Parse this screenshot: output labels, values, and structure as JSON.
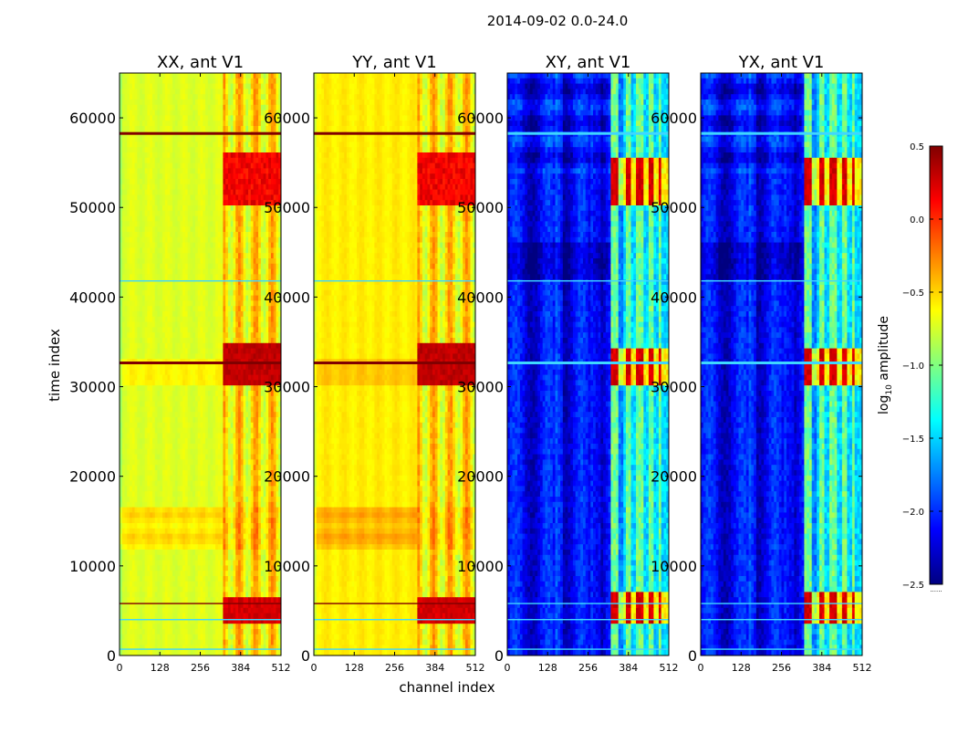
{
  "figure": {
    "title": "2014-09-02 0.0-24.0",
    "x_axis_label": "channel index",
    "y_axis_label": "time index"
  },
  "colorbar": {
    "label_prefix": "log",
    "label_subscript": "10",
    "label_suffix": " amplitude",
    "ticks": [
      "0.5",
      "0.0",
      "−0.5",
      "−1.0",
      "−1.5",
      "−2.0",
      "−2.5"
    ],
    "colors": [
      "#800000",
      "#ff0000",
      "#ff8000",
      "#ffff00",
      "#80ff80",
      "#00ffff",
      "#0080ff",
      "#0000ff",
      "#000080"
    ],
    "footer": "......"
  },
  "chart_data": {
    "type": "heatmap",
    "title": "2014-09-02 0.0-24.0",
    "xlabel": "channel index",
    "ylabel": "time index",
    "xlim": [
      0,
      512
    ],
    "ylim": [
      0,
      65000
    ],
    "xticks": [
      0,
      128,
      256,
      384,
      512
    ],
    "yticks": [
      0,
      10000,
      20000,
      30000,
      40000,
      50000,
      60000
    ],
    "xtick_labels": [
      "0",
      "128",
      "256",
      "384",
      "512"
    ],
    "ytick_labels": [
      "0",
      "10000",
      "20000",
      "30000",
      "40000",
      "50000",
      "60000"
    ],
    "colorbar": {
      "label": "log10 amplitude",
      "vmin": -2.5,
      "vmax": 0.5,
      "ticks": [
        0.5,
        0.0,
        -0.5,
        -1.0,
        -1.5,
        -2.0,
        -2.5
      ]
    },
    "panels": [
      {
        "title": "XX, ant V1",
        "kind": "parallel"
      },
      {
        "title": "YY, ant V1",
        "kind": "parallel"
      },
      {
        "title": "XY, ant V1",
        "kind": "cross"
      },
      {
        "title": "YX, ant V1",
        "kind": "cross"
      }
    ],
    "features": {
      "bright_channel_range": [
        330,
        512
      ],
      "strong_time_bands": [
        [
          30000,
          33000
        ],
        [
          3500,
          6500
        ],
        [
          50000,
          55000
        ]
      ],
      "elevated_time_band_parallel": [
        12000,
        16500
      ],
      "horizontal_flag_rows": [
        32600,
        58200,
        41800,
        5800,
        4000,
        700
      ]
    }
  }
}
